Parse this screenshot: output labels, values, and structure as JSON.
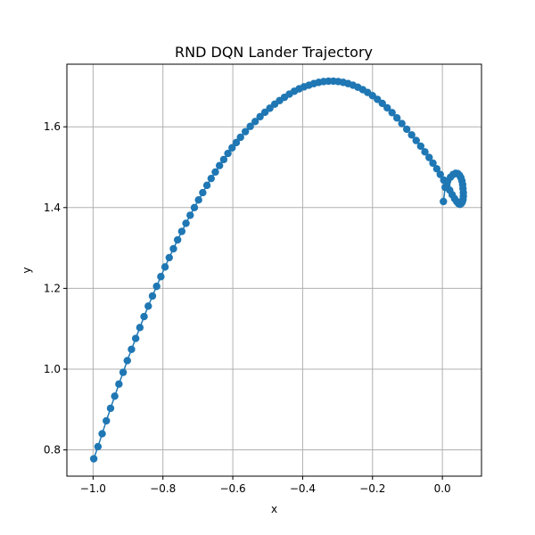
{
  "chart_data": {
    "type": "scatter",
    "title": "RND DQN Lander Trajectory",
    "xlabel": "x",
    "ylabel": "y",
    "xlim": [
      -1.075,
      0.112
    ],
    "ylim": [
      0.735,
      1.755
    ],
    "xticks": [
      -1.0,
      -0.8,
      -0.6,
      -0.4,
      -0.2,
      0.0
    ],
    "xtick_labels": [
      "−1.0",
      "−0.8",
      "−0.6",
      "−0.4",
      "−0.2",
      "0.0"
    ],
    "yticks": [
      0.8,
      1.0,
      1.2,
      1.4,
      1.6
    ],
    "ytick_labels": [
      "0.8",
      "1.0",
      "1.2",
      "1.4",
      "1.6"
    ],
    "grid": true,
    "marker": "circle",
    "line": true,
    "color": "#1f77b4",
    "series": [
      {
        "x": [
          -0.998,
          -0.986,
          -0.974,
          -0.962,
          -0.95,
          -0.938,
          -0.926,
          -0.914,
          -0.902,
          -0.89,
          -0.878,
          -0.866,
          -0.854,
          -0.842,
          -0.83,
          -0.818,
          -0.806,
          -0.794,
          -0.782,
          -0.77,
          -0.758,
          -0.746,
          -0.734,
          -0.722,
          -0.71,
          -0.698,
          -0.686,
          -0.674,
          -0.662,
          -0.65,
          -0.638,
          -0.626,
          -0.614,
          -0.602,
          -0.59,
          -0.578,
          -0.564,
          -0.55,
          -0.536,
          -0.522,
          -0.508,
          -0.494,
          -0.48,
          -0.466,
          -0.452,
          -0.438,
          -0.424,
          -0.41,
          -0.396,
          -0.382,
          -0.368,
          -0.354,
          -0.34,
          -0.326,
          -0.312,
          -0.298,
          -0.284,
          -0.27,
          -0.256,
          -0.242,
          -0.228,
          -0.214,
          -0.2,
          -0.186,
          -0.172,
          -0.158,
          -0.144,
          -0.13,
          -0.116,
          -0.102,
          -0.088,
          -0.075,
          -0.062,
          -0.05,
          -0.038,
          -0.027,
          -0.016,
          -0.006,
          0.004,
          0.013,
          0.021,
          0.028,
          0.035,
          0.041,
          0.046,
          0.05,
          0.054,
          0.057,
          0.059,
          0.06,
          0.06,
          0.059,
          0.058,
          0.056,
          0.053,
          0.049,
          0.044,
          0.038,
          0.031,
          0.023,
          0.015,
          0.008,
          0.003
        ],
        "y": [
          0.778,
          0.808,
          0.84,
          0.872,
          0.903,
          0.933,
          0.963,
          0.992,
          1.021,
          1.049,
          1.076,
          1.103,
          1.13,
          1.156,
          1.181,
          1.205,
          1.229,
          1.253,
          1.276,
          1.298,
          1.32,
          1.341,
          1.361,
          1.381,
          1.4,
          1.419,
          1.437,
          1.455,
          1.472,
          1.488,
          1.504,
          1.519,
          1.534,
          1.548,
          1.561,
          1.574,
          1.588,
          1.601,
          1.613,
          1.625,
          1.636,
          1.646,
          1.656,
          1.665,
          1.673,
          1.681,
          1.688,
          1.694,
          1.699,
          1.703,
          1.707,
          1.71,
          1.712,
          1.713,
          1.713,
          1.712,
          1.71,
          1.707,
          1.703,
          1.698,
          1.692,
          1.685,
          1.677,
          1.668,
          1.658,
          1.647,
          1.635,
          1.622,
          1.608,
          1.594,
          1.58,
          1.566,
          1.552,
          1.538,
          1.524,
          1.51,
          1.496,
          1.482,
          1.468,
          1.455,
          1.443,
          1.432,
          1.422,
          1.415,
          1.41,
          1.408,
          1.41,
          1.414,
          1.42,
          1.428,
          1.437,
          1.447,
          1.457,
          1.466,
          1.474,
          1.48,
          1.484,
          1.485,
          1.482,
          1.475,
          1.465,
          1.45,
          1.415
        ]
      }
    ]
  }
}
